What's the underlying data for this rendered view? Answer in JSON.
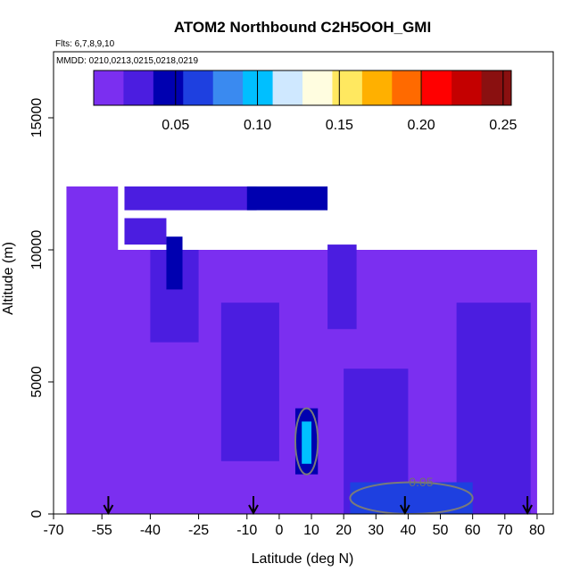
{
  "chart_data": {
    "type": "heatmap",
    "title": "ATOM2 Northbound C2H5OOH_GMI",
    "subtitle_flights": "Flts: 6,7,8,9,10",
    "subtitle_dates": "MMDD: 0210,0213,0215,0218,0219",
    "xlabel": "Latitude (deg N)",
    "ylabel": "Altitude (m)",
    "xlim": [
      -70,
      85
    ],
    "ylim": [
      0,
      17500
    ],
    "x_ticks": [
      -70,
      -55,
      -40,
      -25,
      -10,
      0,
      10,
      20,
      30,
      40,
      50,
      60,
      70,
      80
    ],
    "x_tick_labels": [
      "-70",
      "-55",
      "-40",
      "-25",
      "-10",
      "0",
      "10",
      "20",
      "30",
      "40",
      "50",
      "60",
      "70",
      "80"
    ],
    "y_ticks": [
      0,
      5000,
      10000,
      15000
    ],
    "y_tick_labels": [
      "0",
      "5000",
      "10000",
      "15000"
    ],
    "colorbar": {
      "min": 0.0,
      "max": 0.255,
      "ticks": [
        0.05,
        0.1,
        0.15,
        0.2,
        0.25
      ],
      "tick_labels": [
        "0.05",
        "0.10",
        "0.15",
        "0.20",
        "0.25"
      ],
      "colors": [
        "#7b2ff0",
        "#4b1de0",
        "#0000b0",
        "#1e40e0",
        "#3a8af0",
        "#00bfff",
        "#cfe8ff",
        "#fffde0",
        "#ffe860",
        "#ffb000",
        "#ff6a00",
        "#ff0000",
        "#c40000",
        "#8a1010"
      ]
    },
    "contour_label": "0.05",
    "flight_arrows_lat": [
      -53,
      -8,
      39,
      77
    ],
    "regions": [
      {
        "lat": [
          -66,
          80
        ],
        "alt": [
          0,
          10000
        ],
        "value": 0.012
      },
      {
        "lat": [
          -66,
          -50
        ],
        "alt": [
          10000,
          12400
        ],
        "value": 0.014
      },
      {
        "lat": [
          -48,
          -7
        ],
        "alt": [
          11500,
          12400
        ],
        "value": 0.03
      },
      {
        "lat": [
          -10,
          15
        ],
        "alt": [
          11500,
          12400
        ],
        "value": 0.038
      },
      {
        "lat": [
          -48,
          -35
        ],
        "alt": [
          10200,
          11200
        ],
        "value": 0.032
      },
      {
        "lat": [
          -40,
          -25
        ],
        "alt": [
          6500,
          10000
        ],
        "value": 0.03
      },
      {
        "lat": [
          -35,
          -30
        ],
        "alt": [
          8500,
          10500
        ],
        "value": 0.045
      },
      {
        "lat": [
          -18,
          0
        ],
        "alt": [
          2000,
          8000
        ],
        "value": 0.022
      },
      {
        "lat": [
          15,
          24
        ],
        "alt": [
          7000,
          10200
        ],
        "value": 0.032
      },
      {
        "lat": [
          5,
          12
        ],
        "alt": [
          1500,
          4000
        ],
        "value": 0.04
      },
      {
        "lat": [
          7,
          10
        ],
        "alt": [
          1900,
          3500
        ],
        "value": 0.1
      },
      {
        "lat": [
          20,
          40
        ],
        "alt": [
          0,
          5500
        ],
        "value": 0.028
      },
      {
        "lat": [
          55,
          78
        ],
        "alt": [
          0,
          8000
        ],
        "value": 0.032
      },
      {
        "lat": [
          22,
          60
        ],
        "alt": [
          0,
          1200
        ],
        "value": 0.062
      }
    ]
  }
}
